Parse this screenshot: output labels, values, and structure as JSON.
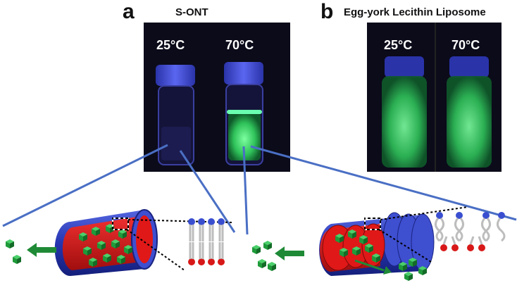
{
  "panel_a": {
    "letter": "a",
    "title": "S-ONT",
    "temp_left": "25°C",
    "temp_right": "70°C"
  },
  "panel_b": {
    "letter": "b",
    "title": "Egg-york Lecithin Liposome",
    "temp_left": "25°C",
    "temp_right": "70°C"
  },
  "colors": {
    "photo_background": "#0b0b1a",
    "vial_cap": "#4a55e6",
    "fluorescence_green": "#4cf07a",
    "connector_line": "#4a6fc4",
    "tube_outer": "#2f3fb8",
    "tube_inner": "#e01818",
    "cargo": "#1f9a3a",
    "lipid_head_blue": "#3a4fd0",
    "lipid_head_red": "#d81818"
  }
}
